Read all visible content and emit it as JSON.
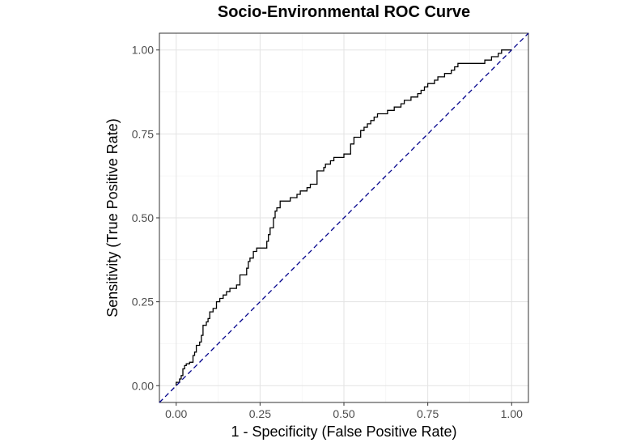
{
  "chart_data": {
    "type": "line",
    "title": "Socio-Environmental ROC Curve",
    "xlabel": "1 - Specificity (False Positive Rate)",
    "ylabel": "Sensitivity (True Positive Rate)",
    "xlim": [
      -0.05,
      1.05
    ],
    "ylim": [
      -0.05,
      1.05
    ],
    "x_ticks": [
      "0.00",
      "0.25",
      "0.50",
      "0.75",
      "1.00"
    ],
    "y_ticks": [
      "0.00",
      "0.25",
      "0.50",
      "0.75",
      "1.00"
    ],
    "grid": true,
    "series": [
      {
        "style": "step",
        "color": "#000000",
        "x": [
          0.0,
          0.0,
          0.01,
          0.015,
          0.02,
          0.025,
          0.03,
          0.04,
          0.05,
          0.055,
          0.06,
          0.07,
          0.075,
          0.08,
          0.09,
          0.095,
          0.1,
          0.11,
          0.12,
          0.13,
          0.14,
          0.15,
          0.16,
          0.17,
          0.18,
          0.19,
          0.21,
          0.215,
          0.22,
          0.23,
          0.24,
          0.25,
          0.27,
          0.275,
          0.28,
          0.29,
          0.295,
          0.3,
          0.31,
          0.315,
          0.32,
          0.34,
          0.36,
          0.37,
          0.39,
          0.4,
          0.42,
          0.44,
          0.445,
          0.46,
          0.47,
          0.48,
          0.5,
          0.52,
          0.53,
          0.55,
          0.56,
          0.57,
          0.58,
          0.59,
          0.6,
          0.61,
          0.62,
          0.63,
          0.65,
          0.66,
          0.67,
          0.68,
          0.69,
          0.7,
          0.72,
          0.73,
          0.74,
          0.75,
          0.77,
          0.78,
          0.8,
          0.82,
          0.83,
          0.84,
          0.85,
          0.87,
          0.88,
          0.92,
          0.94,
          0.95,
          0.96,
          0.97,
          0.98,
          1.0
        ],
        "y": [
          0.0,
          0.01,
          0.02,
          0.03,
          0.05,
          0.06,
          0.065,
          0.07,
          0.09,
          0.1,
          0.12,
          0.13,
          0.15,
          0.18,
          0.19,
          0.2,
          0.22,
          0.23,
          0.25,
          0.26,
          0.27,
          0.28,
          0.29,
          0.29,
          0.3,
          0.33,
          0.35,
          0.37,
          0.38,
          0.4,
          0.41,
          0.41,
          0.43,
          0.45,
          0.47,
          0.5,
          0.52,
          0.53,
          0.55,
          0.55,
          0.55,
          0.56,
          0.57,
          0.58,
          0.59,
          0.6,
          0.64,
          0.65,
          0.66,
          0.67,
          0.68,
          0.68,
          0.69,
          0.72,
          0.74,
          0.76,
          0.77,
          0.78,
          0.79,
          0.8,
          0.81,
          0.81,
          0.81,
          0.82,
          0.83,
          0.83,
          0.84,
          0.85,
          0.85,
          0.86,
          0.87,
          0.88,
          0.89,
          0.9,
          0.91,
          0.92,
          0.93,
          0.94,
          0.95,
          0.96,
          0.96,
          0.96,
          0.96,
          0.97,
          0.98,
          0.98,
          0.99,
          1.0,
          1.0,
          1.0
        ]
      },
      {
        "style": "dashed",
        "color": "#00008b",
        "x": [
          -0.05,
          1.05
        ],
        "y": [
          -0.05,
          1.05
        ]
      }
    ]
  }
}
